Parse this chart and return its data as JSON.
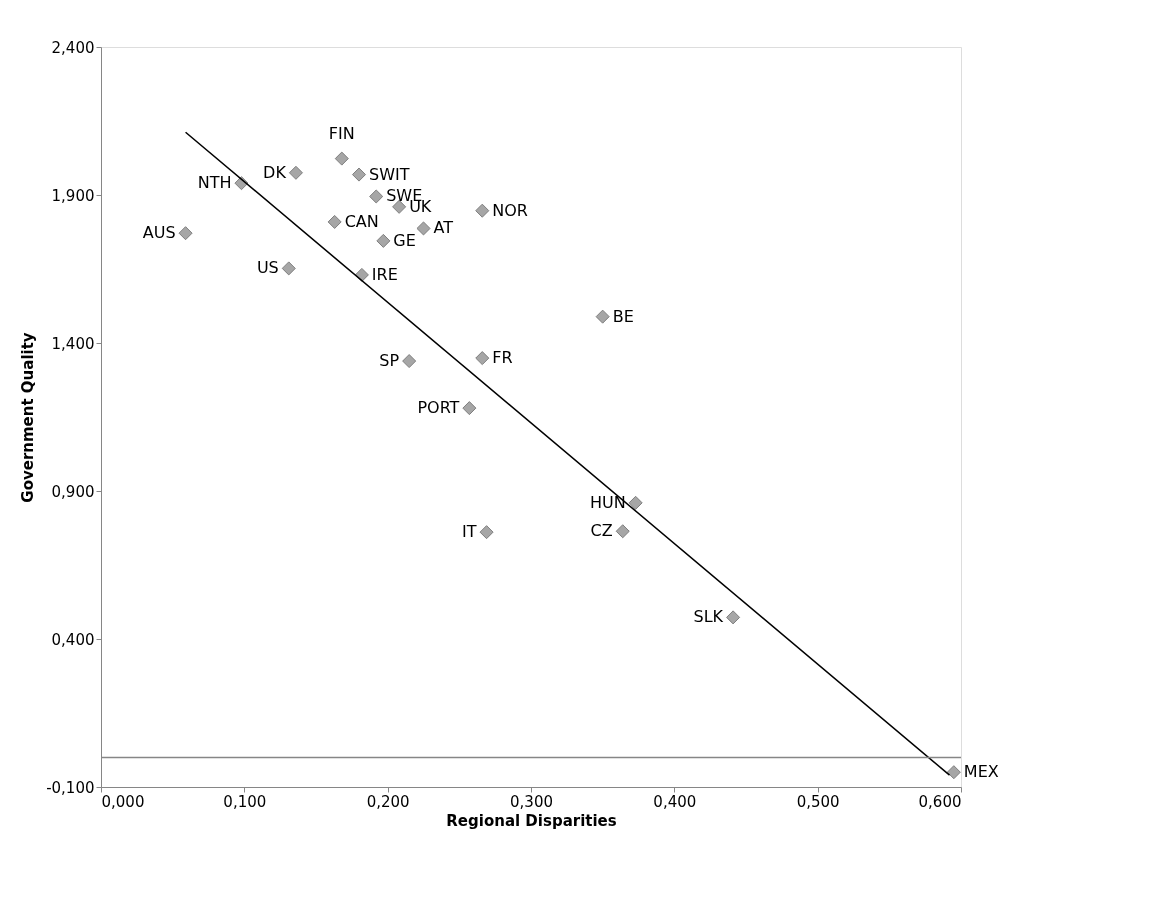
{
  "chart_data": {
    "type": "scatter",
    "xlabel": "Regional Disparities",
    "ylabel": "Government Quality",
    "xlim": [
      0,
      0.6
    ],
    "ylim": [
      -0.1,
      2.4
    ],
    "xticks": [
      {
        "value": 0,
        "label": "0,000"
      },
      {
        "value": 0.1,
        "label": "0,100"
      },
      {
        "value": 0.2,
        "label": "0,200"
      },
      {
        "value": 0.3,
        "label": "0,300"
      },
      {
        "value": 0.4,
        "label": "0,400"
      },
      {
        "value": 0.5,
        "label": "0,500"
      },
      {
        "value": 0.6,
        "label": "0,600"
      }
    ],
    "yticks": [
      {
        "value": -0.1,
        "label": "-0,100"
      },
      {
        "value": 0.4,
        "label": "0,400"
      },
      {
        "value": 0.9,
        "label": "0,900"
      },
      {
        "value": 1.4,
        "label": "1,400"
      },
      {
        "value": 1.9,
        "label": "1,900"
      },
      {
        "value": 2.4,
        "label": "2,400"
      }
    ],
    "grid": false,
    "ref_lines": [
      {
        "axis": "y",
        "value": 0,
        "color": "#868686"
      }
    ],
    "series": [
      {
        "marker": "diamond",
        "color": "#a6a6a6",
        "x": [
          0.059,
          0.098,
          0.136,
          0.168,
          0.18,
          0.192,
          0.208,
          0.266,
          0.163,
          0.225,
          0.197,
          0.131,
          0.182,
          0.35,
          0.215,
          0.266,
          0.257,
          0.373,
          0.269,
          0.364,
          0.441,
          0.595
        ],
        "values": [
          1.771,
          1.94,
          1.975,
          2.023,
          1.969,
          1.895,
          1.86,
          1.847,
          1.809,
          1.787,
          1.745,
          1.652,
          1.63,
          1.489,
          1.339,
          1.349,
          1.18,
          0.86,
          0.761,
          0.764,
          0.473,
          -0.05
        ]
      },
      {
        "type": "line",
        "marker": "none",
        "line_style": "solid",
        "color": "#000000",
        "x": [
          0.059,
          0.592
        ],
        "values": [
          2.112,
          -0.06
        ]
      }
    ],
    "annotations": [
      {
        "text": "AUS",
        "x": 0.059,
        "y": 1.771
      },
      {
        "text": "NTH",
        "x": 0.098,
        "y": 1.94
      },
      {
        "text": "DK",
        "x": 0.136,
        "y": 1.975
      },
      {
        "text": "FIN",
        "x": 0.168,
        "y": 2.023
      },
      {
        "text": "SWIT",
        "x": 0.18,
        "y": 1.969
      },
      {
        "text": "SWE",
        "x": 0.192,
        "y": 1.895
      },
      {
        "text": "UK",
        "x": 0.208,
        "y": 1.86
      },
      {
        "text": "NOR",
        "x": 0.266,
        "y": 1.847
      },
      {
        "text": "CAN",
        "x": 0.163,
        "y": 1.809
      },
      {
        "text": "AT",
        "x": 0.225,
        "y": 1.787
      },
      {
        "text": "GE",
        "x": 0.197,
        "y": 1.745
      },
      {
        "text": "US",
        "x": 0.131,
        "y": 1.652
      },
      {
        "text": "IRE",
        "x": 0.182,
        "y": 1.63
      },
      {
        "text": "BE",
        "x": 0.35,
        "y": 1.489
      },
      {
        "text": "SP",
        "x": 0.215,
        "y": 1.339
      },
      {
        "text": "FR",
        "x": 0.266,
        "y": 1.349
      },
      {
        "text": "PORT",
        "x": 0.257,
        "y": 1.18
      },
      {
        "text": "HUN",
        "x": 0.373,
        "y": 0.86
      },
      {
        "text": "IT",
        "x": 0.269,
        "y": 0.761
      },
      {
        "text": "CZ",
        "x": 0.364,
        "y": 0.764
      },
      {
        "text": "SLK",
        "x": 0.441,
        "y": 0.473
      },
      {
        "text": "MEX",
        "x": 0.595,
        "y": -0.05
      }
    ]
  }
}
